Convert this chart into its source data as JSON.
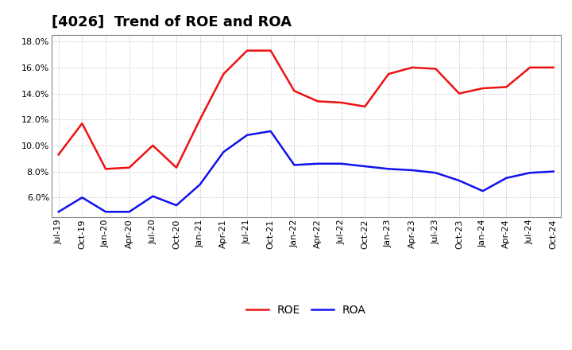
{
  "title": "[4026]  Trend of ROE and ROA",
  "x_labels": [
    "Jul-19",
    "Oct-19",
    "Jan-20",
    "Apr-20",
    "Jul-20",
    "Oct-20",
    "Jan-21",
    "Apr-21",
    "Jul-21",
    "Oct-21",
    "Jan-22",
    "Apr-22",
    "Jul-22",
    "Oct-22",
    "Jan-23",
    "Apr-23",
    "Jul-23",
    "Oct-23",
    "Jan-24",
    "Apr-24",
    "Jul-24",
    "Oct-24"
  ],
  "roe": [
    9.3,
    11.7,
    8.2,
    8.3,
    10.0,
    8.3,
    12.0,
    15.5,
    17.3,
    17.3,
    14.2,
    13.4,
    13.3,
    13.0,
    15.5,
    16.0,
    15.9,
    14.0,
    14.4,
    14.5,
    16.0,
    16.0
  ],
  "roa": [
    4.9,
    6.0,
    4.9,
    4.9,
    6.1,
    5.4,
    7.0,
    9.5,
    10.8,
    11.1,
    8.5,
    8.6,
    8.6,
    8.4,
    8.2,
    8.1,
    7.9,
    7.3,
    6.5,
    7.5,
    7.9,
    8.0
  ],
  "roe_color": "#EE1111",
  "roa_color": "#1111EE",
  "background_color": "#FFFFFF",
  "plot_bg_color": "#FFFFFF",
  "grid_color": "#BBBBBB",
  "ylim": [
    4.5,
    18.5
  ],
  "yticks": [
    6.0,
    8.0,
    10.0,
    12.0,
    14.0,
    16.0,
    18.0
  ],
  "line_width": 1.8,
  "title_fontsize": 13,
  "tick_fontsize": 8,
  "legend_fontsize": 10
}
